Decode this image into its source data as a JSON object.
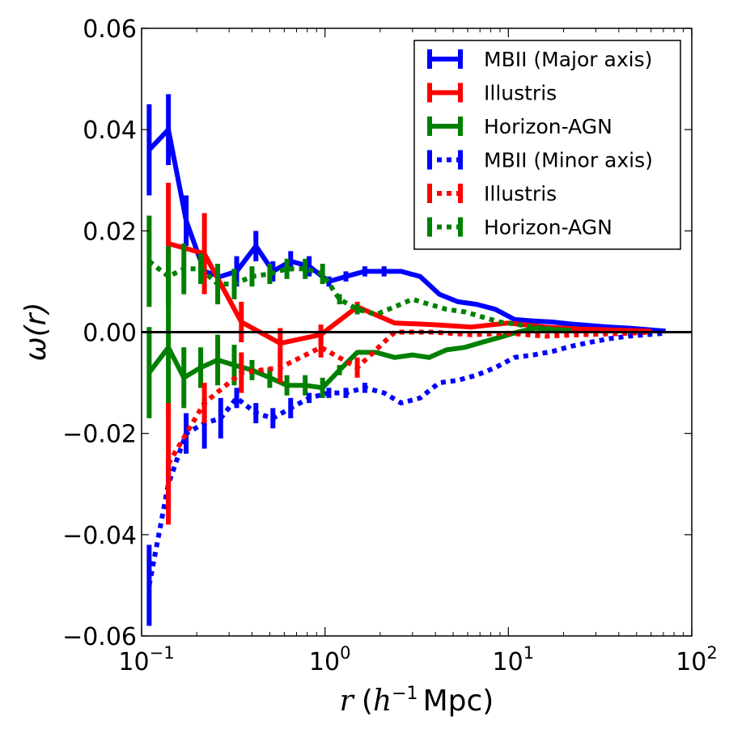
{
  "chart_data": {
    "type": "line",
    "x_scale": "log",
    "xlim": [
      0.1,
      100
    ],
    "ylim": [
      -0.06,
      0.06
    ],
    "xlabel": {
      "italic": "r",
      "paren_open": "(",
      "base": "h",
      "exponent": "−1",
      "unit": "Mpc)"
    },
    "ylabel": "ω(r)",
    "legend_position": "upper-right",
    "x_ticks": [
      {
        "value": 0.1,
        "base": "10",
        "exp": "−1"
      },
      {
        "value": 1,
        "base": "10",
        "exp": "0"
      },
      {
        "value": 10,
        "base": "10",
        "exp": "1"
      },
      {
        "value": 100,
        "base": "10",
        "exp": "2"
      }
    ],
    "y_ticks": [
      {
        "value": 0.06,
        "label": "0.06"
      },
      {
        "value": 0.04,
        "label": "0.04"
      },
      {
        "value": 0.02,
        "label": "0.02"
      },
      {
        "value": 0.0,
        "label": "0.00"
      },
      {
        "value": -0.02,
        "label": "−0.02"
      },
      {
        "value": -0.04,
        "label": "−0.04"
      },
      {
        "value": -0.06,
        "label": "−0.06"
      }
    ],
    "zero_line": 0,
    "series": [
      {
        "name": "MBII (Major axis)",
        "color": "#0000ff",
        "style": "solid",
        "x": [
          0.11,
          0.14,
          0.175,
          0.22,
          0.27,
          0.33,
          0.42,
          0.52,
          0.65,
          0.82,
          1.05,
          1.3,
          1.65,
          2.1,
          2.6,
          3.3,
          4.2,
          5.3,
          6.7,
          8.5,
          10.8,
          13.7,
          17.4,
          22,
          28,
          35.5,
          45,
          57,
          72
        ],
        "y": [
          0.036,
          0.04,
          0.022,
          0.012,
          0.011,
          0.012,
          0.017,
          0.012,
          0.014,
          0.013,
          0.01,
          0.011,
          0.012,
          0.012,
          0.012,
          0.011,
          0.0075,
          0.006,
          0.0055,
          0.0045,
          0.0025,
          0.0022,
          0.002,
          0.0016,
          0.0013,
          0.001,
          0.0008,
          0.0005,
          0.0002
        ],
        "err": [
          0.009,
          0.007,
          0.005,
          0,
          0,
          0.003,
          0.003,
          0.002,
          0.002,
          0.002,
          0.001,
          0.001,
          0.001,
          0.001,
          0,
          0,
          0,
          0,
          0,
          0,
          0,
          0,
          0,
          0,
          0,
          0,
          0,
          0,
          0
        ]
      },
      {
        "name": "Illustris",
        "color": "#ff0000",
        "style": "solid",
        "x": [
          0.14,
          0.22,
          0.35,
          0.57,
          0.95,
          1.5,
          2.4,
          3.8,
          6.3,
          10,
          16,
          25,
          40,
          60
        ],
        "y": [
          0.0175,
          0.0155,
          0.002,
          -0.0022,
          -0.0005,
          0.005,
          0.0018,
          0.0015,
          0.001,
          0.0018,
          0.001,
          0.0006,
          0.0004,
          0.0002
        ],
        "err": [
          0.012,
          0.008,
          0.004,
          0.003,
          0.002,
          0.001,
          0,
          0,
          0,
          0,
          0,
          0,
          0,
          0
        ]
      },
      {
        "name": "Horizon-AGN",
        "color": "#008000",
        "style": "solid",
        "x": [
          0.11,
          0.14,
          0.17,
          0.21,
          0.26,
          0.32,
          0.4,
          0.5,
          0.62,
          0.78,
          0.97,
          1.2,
          1.5,
          1.9,
          2.4,
          3,
          3.7,
          4.6,
          5.8,
          7.2,
          9,
          11.2,
          14,
          17.5,
          22
        ],
        "y": [
          -0.008,
          -0.003,
          -0.009,
          -0.007,
          -0.0055,
          -0.0065,
          -0.0075,
          -0.009,
          -0.0105,
          -0.0105,
          -0.011,
          -0.0075,
          -0.004,
          -0.004,
          -0.005,
          -0.0045,
          -0.005,
          -0.0035,
          -0.003,
          -0.002,
          -0.001,
          0,
          0.0008,
          0.0005,
          0.0003
        ],
        "err": [
          0.009,
          0.013,
          0.006,
          0.004,
          0.005,
          0.004,
          0.002,
          0.002,
          0.002,
          0.002,
          0.002,
          0.001,
          0,
          0,
          0,
          0,
          0,
          0,
          0,
          0,
          0,
          0,
          0,
          0,
          0
        ]
      },
      {
        "name": "MBII (Minor axis)",
        "color": "#0000ff",
        "style": "dotted",
        "x": [
          0.11,
          0.14,
          0.175,
          0.22,
          0.27,
          0.33,
          0.42,
          0.52,
          0.65,
          0.82,
          1.05,
          1.3,
          1.65,
          2.1,
          2.6,
          3.3,
          4.2,
          5.3,
          6.7,
          8.5,
          10.8,
          13.7,
          17.4,
          22,
          28,
          35.5,
          45,
          57,
          72
        ],
        "y": [
          -0.05,
          -0.03,
          -0.02,
          -0.018,
          -0.017,
          -0.013,
          -0.016,
          -0.017,
          -0.015,
          -0.013,
          -0.012,
          -0.012,
          -0.011,
          -0.012,
          -0.014,
          -0.013,
          -0.01,
          -0.0095,
          -0.0085,
          -0.007,
          -0.005,
          -0.0045,
          -0.0038,
          -0.0028,
          -0.002,
          -0.0013,
          -0.0008,
          -0.0005,
          -0.0002
        ],
        "err": [
          0.008,
          0.005,
          0.004,
          0.005,
          0.004,
          0.002,
          0.002,
          0.002,
          0.002,
          0.001,
          0.001,
          0.001,
          0.001,
          0,
          0,
          0,
          0,
          0,
          0,
          0,
          0,
          0,
          0,
          0,
          0,
          0,
          0,
          0,
          0
        ]
      },
      {
        "name": "Illustris",
        "color": "#ff0000",
        "style": "dotted",
        "x": [
          0.14,
          0.22,
          0.35,
          0.57,
          0.95,
          1.5,
          2.4,
          3.8,
          6.3,
          10,
          16,
          25,
          40,
          60
        ],
        "y": [
          -0.026,
          -0.014,
          -0.008,
          -0.007,
          -0.003,
          -0.007,
          0,
          0,
          -0.0005,
          -0.0002,
          -0.0008,
          -0.0005,
          -0.0003,
          0
        ],
        "err": [
          0.012,
          0.004,
          0.004,
          0.003,
          0.002,
          0.002,
          0,
          0,
          0,
          0,
          0,
          0,
          0,
          0
        ]
      },
      {
        "name": "Horizon-AGN",
        "color": "#008000",
        "style": "dotted",
        "x": [
          0.11,
          0.14,
          0.17,
          0.21,
          0.26,
          0.32,
          0.4,
          0.5,
          0.62,
          0.78,
          0.97,
          1.2,
          1.5,
          1.9,
          2.4,
          3,
          3.7,
          4.6,
          5.8,
          7.2,
          9,
          11.2,
          14,
          17.5,
          22
        ],
        "y": [
          0.014,
          0.011,
          0.0125,
          0.0125,
          0.0095,
          0.0095,
          0.011,
          0.0115,
          0.0125,
          0.0125,
          0.0115,
          0.0065,
          0.0045,
          0.0035,
          0.005,
          0.0065,
          0.0055,
          0.0045,
          0.004,
          0.003,
          0.002,
          0.0015,
          0.001,
          0.0006,
          0.0003
        ],
        "err": [
          0.009,
          0.006,
          0.005,
          0.003,
          0.004,
          0.003,
          0.002,
          0.002,
          0.002,
          0.002,
          0.002,
          0.001,
          0.001,
          0,
          0,
          0,
          0,
          0,
          0,
          0,
          0,
          0,
          0,
          0,
          0
        ]
      }
    ]
  }
}
